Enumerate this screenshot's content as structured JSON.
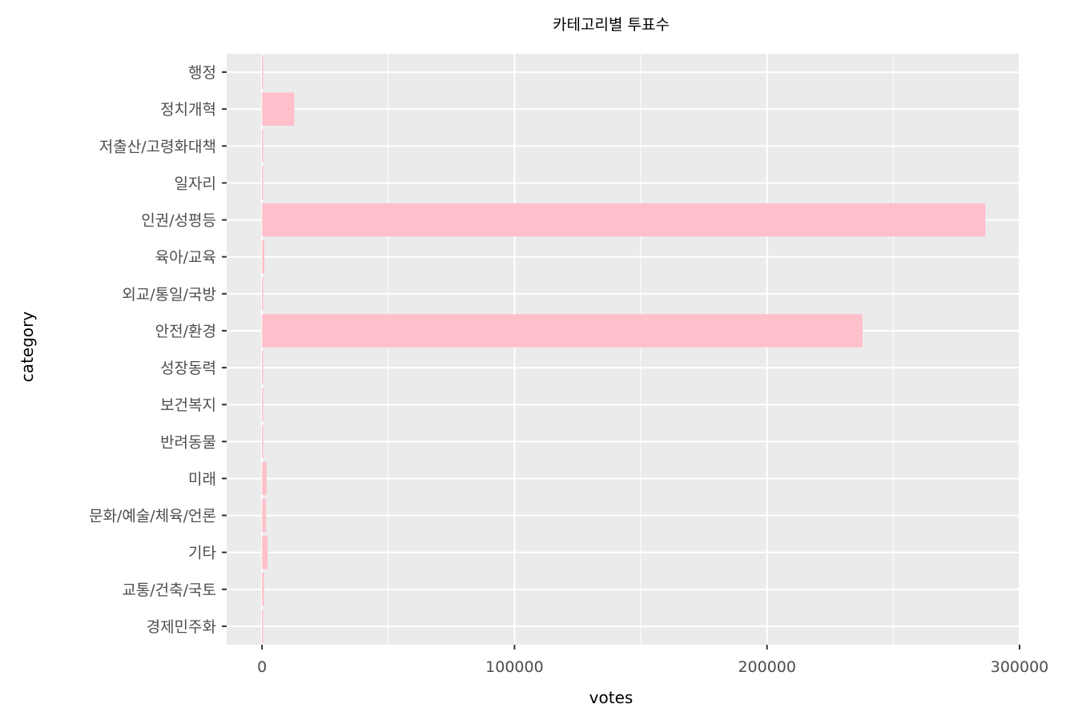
{
  "chart_data": {
    "type": "bar",
    "orientation": "horizontal",
    "title": "카테고리별 투표수",
    "xlabel": "votes",
    "ylabel": "category",
    "categories": [
      "행정",
      "정치개혁",
      "저출산/고령화대책",
      "일자리",
      "인권/성평등",
      "육아/교육",
      "외교/통일/국방",
      "안전/환경",
      "성장동력",
      "보건복지",
      "반려동물",
      "미래",
      "문화/예술/체육/언론",
      "기타",
      "교통/건축/국토",
      "경제민주화"
    ],
    "values": [
      300,
      12800,
      200,
      300,
      286500,
      900,
      300,
      237800,
      200,
      300,
      200,
      1800,
      1600,
      2200,
      800,
      100
    ],
    "xlim": [
      -14000,
      300000
    ],
    "xticks": [
      0,
      100000,
      200000,
      300000
    ],
    "xtick_labels": [
      "0",
      "100000",
      "200000",
      "300000"
    ],
    "grid": true,
    "colors": {
      "bar": "#ffc0cb",
      "panel": "#ebebeb",
      "grid_major": "#ffffff",
      "text": "#4d4d4d",
      "tick": "#333333"
    }
  }
}
